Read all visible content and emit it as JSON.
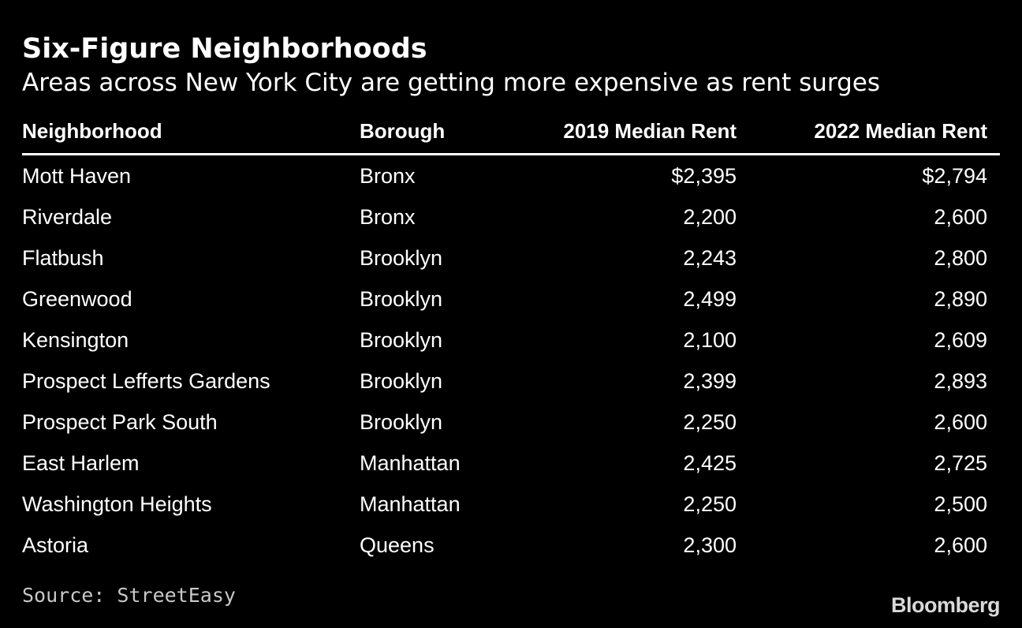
{
  "chart_data": {
    "type": "table",
    "title": "Six-Figure Neighborhoods",
    "subtitle": "Areas across New York City are getting more expensive as rent surges",
    "columns": [
      "Neighborhood",
      "Borough",
      "2019 Median Rent",
      "2022 Median Rent"
    ],
    "rows": [
      [
        "Mott Haven",
        "Bronx",
        "$2,395",
        "$2,794"
      ],
      [
        "Riverdale",
        "Bronx",
        "2,200",
        "2,600"
      ],
      [
        "Flatbush",
        "Brooklyn",
        "2,243",
        "2,800"
      ],
      [
        "Greenwood",
        "Brooklyn",
        "2,499",
        "2,890"
      ],
      [
        "Kensington",
        "Brooklyn",
        "2,100",
        "2,609"
      ],
      [
        "Prospect Lefferts Gardens",
        "Brooklyn",
        "2,399",
        "2,893"
      ],
      [
        "Prospect Park South",
        "Brooklyn",
        "2,250",
        "2,600"
      ],
      [
        "East Harlem",
        "Manhattan",
        "2,425",
        "2,725"
      ],
      [
        "Washington Heights",
        "Manhattan",
        "2,250",
        "2,500"
      ],
      [
        "Astoria",
        "Queens",
        "2,300",
        "2,600"
      ]
    ],
    "source": "Source: StreetEasy"
  },
  "branding": {
    "logo_text": "Bloomberg"
  },
  "colors": {
    "background": "#000000",
    "text": "#ffffff",
    "muted": "#c8c8c8"
  }
}
